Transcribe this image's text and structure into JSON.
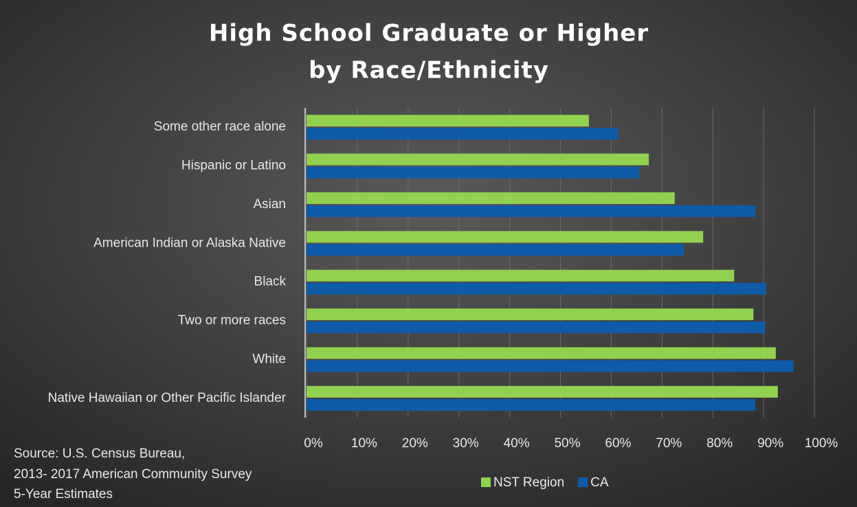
{
  "chart_data": {
    "type": "hbar",
    "title": [
      "High School Graduate or Higher",
      "by Race/Ethnicity"
    ],
    "categories": [
      "Some other race alone",
      "Hispanic or Latino",
      "Asian",
      "American Indian or Alaska Native",
      "Black",
      "Two or more races",
      "White",
      "Native Hawaiian or Other Pacific Islander"
    ],
    "series": [
      {
        "name": "NST Region",
        "color": "#92d050",
        "values": [
          55.6,
          67.4,
          72.5,
          78.1,
          84.2,
          88.0,
          92.4,
          92.8
        ]
      },
      {
        "name": "CA",
        "color": "#0f5ba7",
        "values": [
          61.4,
          65.5,
          88.4,
          74.3,
          90.5,
          90.3,
          95.9,
          88.4
        ]
      }
    ],
    "xlim": [
      0,
      100
    ],
    "xticks": [
      {
        "value": 0,
        "label": "0%"
      },
      {
        "value": 10,
        "label": "10%"
      },
      {
        "value": 20,
        "label": "20%"
      },
      {
        "value": 30,
        "label": "30%"
      },
      {
        "value": 40,
        "label": "40%"
      },
      {
        "value": 50,
        "label": "50%"
      },
      {
        "value": 60,
        "label": "60%"
      },
      {
        "value": 70,
        "label": "70%"
      },
      {
        "value": 80,
        "label": "80%"
      },
      {
        "value": 90,
        "label": "90%"
      },
      {
        "value": 100,
        "label": "100%"
      }
    ],
    "grid": true,
    "legend": "bottom",
    "source": [
      "Source: U.S. Census Bureau,",
      "2013- 2017 American Community Survey",
      "5-Year Estimates"
    ]
  }
}
